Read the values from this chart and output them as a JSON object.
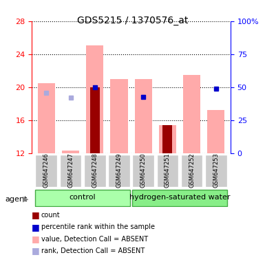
{
  "title": "GDS5215 / 1370576_at",
  "samples": [
    "GSM647246",
    "GSM647247",
    "GSM647248",
    "GSM647249",
    "GSM647250",
    "GSM647251",
    "GSM647252",
    "GSM647253"
  ],
  "groups": [
    "control",
    "control",
    "control",
    "control",
    "hydrogen-saturated water",
    "hydrogen-saturated water",
    "hydrogen-saturated water",
    "hydrogen-saturated water"
  ],
  "group_labels": [
    "control",
    "hydrogen-saturated water"
  ],
  "group_colors": [
    "#aaffaa",
    "#66ee66"
  ],
  "ylim_left": [
    12,
    28
  ],
  "ylim_right": [
    0,
    100
  ],
  "yticks_left": [
    12,
    16,
    20,
    24,
    28
  ],
  "yticks_right": [
    0,
    25,
    50,
    75,
    100
  ],
  "ytick_labels_right": [
    "0",
    "25",
    "50",
    "75",
    "100%"
  ],
  "value_absent": [
    20.5,
    12.3,
    25.1,
    21.0,
    21.0,
    15.4,
    21.5,
    17.2
  ],
  "rank_absent": [
    19.3,
    18.7,
    null,
    null,
    null,
    null,
    null,
    null
  ],
  "count_dark_red": [
    null,
    null,
    20.0,
    null,
    null,
    15.4,
    null,
    null
  ],
  "percentile_rank": [
    null,
    null,
    20.0,
    null,
    18.8,
    null,
    null,
    19.8
  ],
  "bar_bottom": 12,
  "color_value_absent": "#ffaaaa",
  "color_rank_absent": "#aaaadd",
  "color_count": "#990000",
  "color_percentile": "#0000cc",
  "bar_width": 0.4
}
